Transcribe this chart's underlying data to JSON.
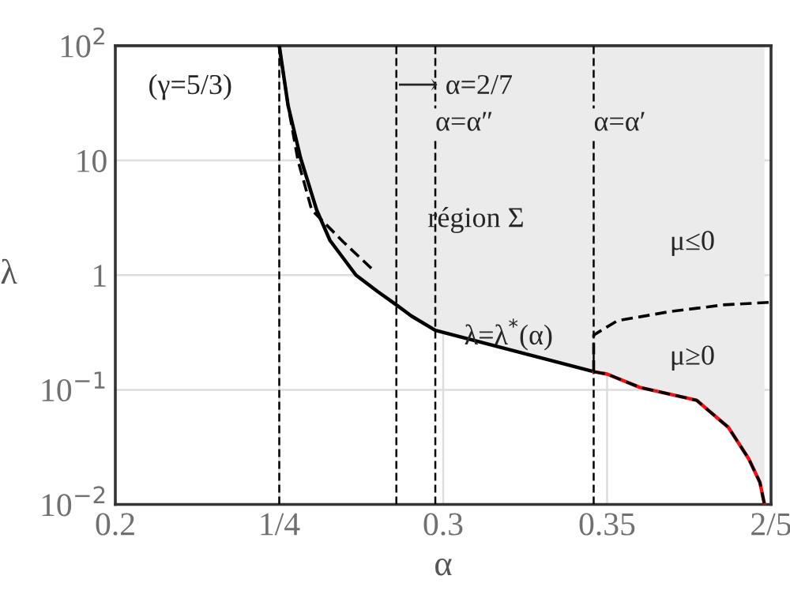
{
  "chart_data": {
    "type": "line",
    "xlabel": "α",
    "ylabel": "λ",
    "log": "y",
    "grid": true,
    "legend": false,
    "marker": "none",
    "xlim": [
      0.2,
      0.4
    ],
    "xticks": [
      0.2,
      {
        "value": 0.25,
        "label": "1/4"
      },
      0.3,
      0.35,
      {
        "value": 0.4,
        "label": "2/5"
      }
    ],
    "ylim": [
      0.01,
      100
    ],
    "yticks": [
      {
        "value": 100,
        "label": "10$^{2}$"
      },
      10,
      1,
      {
        "value": 0.1,
        "label": "10$^{−1}$"
      },
      {
        "value": 0.01,
        "label": "10$^{−2}$"
      }
    ],
    "series": [
      {
        "color": "#000000",
        "line_style": "solid",
        "x": [
          0.25,
          0.2527,
          0.2565,
          0.2614,
          0.2655,
          0.2734,
          0.28,
          0.2857,
          0.2903,
          0.2976,
          0.3459
        ],
        "values": [
          100,
          30,
          10.5,
          3.7,
          2,
          1,
          0.72,
          0.55,
          0.44,
          0.33,
          0.144
        ],
        "lower": [
          100,
          30,
          10.5,
          3.7,
          2,
          1,
          0.72,
          0.55,
          0.44,
          0.33,
          0.144
        ],
        "upper": [
          100,
          100,
          100,
          100,
          100,
          100,
          100,
          100,
          100,
          100,
          100
        ]
      },
      {
        "color": "#e8141a",
        "line_style": "solid",
        "x": [
          0.3459,
          0.35,
          0.36,
          0.3773,
          0.387,
          0.3932,
          0.3966,
          0.398
        ],
        "values": [
          0.144,
          0.137,
          0.105,
          0.081,
          0.047,
          0.025,
          0.0156,
          0.01
        ],
        "lower": [
          0.144,
          0.137,
          0.105,
          0.081,
          0.047,
          0.025,
          0.0156,
          0.01
        ],
        "upper": [
          100,
          100,
          100,
          100,
          100,
          100,
          100,
          100
        ]
      },
      {
        "color": "#000000",
        "line_style": "dashed",
        "x": [
          0.3459,
          0.35,
          0.36,
          0.3773,
          0.387,
          0.3932,
          0.3966,
          0.398
        ],
        "values": [
          0.144,
          0.137,
          0.105,
          0.081,
          0.047,
          0.025,
          0.0156,
          0.01
        ]
      },
      {
        "color": "#000000",
        "line_style": "dashed",
        "x": [
          0.25,
          0.2527,
          0.2557,
          0.2599,
          0.2696,
          0.2792
        ],
        "values": [
          100,
          30,
          10,
          3.7,
          1.94,
          1.07
        ]
      },
      {
        "color": "#000000",
        "line_style": "dashed",
        "x": [
          0.3459,
          0.3459,
          0.3531,
          0.369,
          0.3855,
          0.4
        ],
        "values": [
          0.144,
          0.3,
          0.4,
          0.48,
          0.55,
          0.58
        ]
      }
    ],
    "ref_lines": [
      {
        "axis": "x",
        "value": 0.25,
        "label": null,
        "color": "#000000",
        "line_style": "dashed"
      },
      {
        "axis": "x",
        "value": 0.285714,
        "label": null,
        "color": "#000000",
        "line_style": "dashed"
      },
      {
        "axis": "x",
        "value": 0.2976,
        "label": "α=α″",
        "color": "#000000",
        "line_style": "dashed"
      },
      {
        "axis": "x",
        "value": 0.3459,
        "label": "α=α′",
        "color": "#000000",
        "line_style": "dashed"
      }
    ],
    "annotations": [
      "(γ=5/3)",
      "région Σ",
      "μ≤0",
      "μ≥0",
      "λ=λ$^{*}$(α)",
      "⟶ α=2/7"
    ]
  }
}
